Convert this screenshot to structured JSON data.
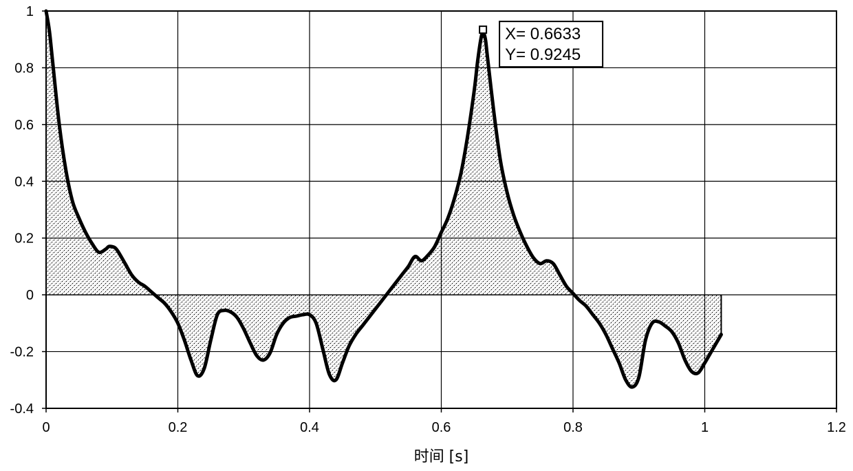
{
  "chart_data": {
    "type": "area",
    "xlabel": "时间 [s]",
    "ylabel": "",
    "xlim": [
      0,
      1.2
    ],
    "ylim": [
      -0.4,
      1.0
    ],
    "x_ticks": [
      "0",
      "0.2",
      "0.4",
      "0.6",
      "0.8",
      "1",
      "1.2"
    ],
    "y_ticks": [
      "1",
      "0.8",
      "0.6",
      "0.4",
      "0.2",
      "0",
      "-0.2",
      "-0.4"
    ],
    "grid": true,
    "fill_pattern": "stipple",
    "cursor": {
      "x": 0.6633,
      "y": 0.9245,
      "x_text": "X= 0.6633",
      "y_text": "Y= 0.9245"
    },
    "series": [
      {
        "x": [
          0,
          0.005,
          0.01,
          0.02,
          0.03,
          0.04,
          0.05,
          0.06,
          0.07,
          0.08,
          0.09,
          0.095,
          0.1,
          0.105,
          0.11,
          0.12,
          0.13,
          0.14,
          0.15,
          0.16,
          0.17,
          0.18,
          0.19,
          0.2,
          0.21,
          0.22,
          0.23,
          0.24,
          0.25,
          0.26,
          0.27,
          0.28,
          0.29,
          0.3,
          0.31,
          0.32,
          0.33,
          0.34,
          0.35,
          0.36,
          0.37,
          0.38,
          0.39,
          0.4,
          0.41,
          0.42,
          0.43,
          0.44,
          0.45,
          0.46,
          0.47,
          0.48,
          0.49,
          0.5,
          0.51,
          0.52,
          0.53,
          0.54,
          0.55,
          0.56,
          0.57,
          0.58,
          0.59,
          0.6,
          0.61,
          0.62,
          0.63,
          0.64,
          0.65,
          0.655,
          0.66,
          0.6633,
          0.667,
          0.67,
          0.68,
          0.69,
          0.7,
          0.71,
          0.72,
          0.73,
          0.74,
          0.75,
          0.76,
          0.77,
          0.78,
          0.79,
          0.8,
          0.81,
          0.82,
          0.83,
          0.84,
          0.85,
          0.86,
          0.87,
          0.88,
          0.89,
          0.9,
          0.91,
          0.92,
          0.93,
          0.94,
          0.95,
          0.96,
          0.97,
          0.98,
          0.99,
          1.0,
          1.01,
          1.02,
          1.025
        ],
        "values": [
          1.0,
          0.93,
          0.82,
          0.6,
          0.44,
          0.33,
          0.27,
          0.22,
          0.18,
          0.15,
          0.16,
          0.17,
          0.17,
          0.165,
          0.15,
          0.11,
          0.07,
          0.045,
          0.03,
          0.01,
          -0.01,
          -0.03,
          -0.06,
          -0.1,
          -0.16,
          -0.23,
          -0.285,
          -0.26,
          -0.16,
          -0.07,
          -0.055,
          -0.06,
          -0.08,
          -0.12,
          -0.17,
          -0.215,
          -0.23,
          -0.205,
          -0.14,
          -0.1,
          -0.08,
          -0.075,
          -0.07,
          -0.07,
          -0.1,
          -0.19,
          -0.28,
          -0.3,
          -0.24,
          -0.18,
          -0.14,
          -0.11,
          -0.08,
          -0.05,
          -0.02,
          0.01,
          0.04,
          0.07,
          0.1,
          0.135,
          0.12,
          0.14,
          0.17,
          0.22,
          0.27,
          0.34,
          0.43,
          0.56,
          0.72,
          0.82,
          0.9,
          0.9245,
          0.9,
          0.84,
          0.64,
          0.47,
          0.36,
          0.28,
          0.22,
          0.17,
          0.13,
          0.11,
          0.12,
          0.11,
          0.07,
          0.03,
          0.005,
          -0.02,
          -0.04,
          -0.07,
          -0.1,
          -0.14,
          -0.19,
          -0.24,
          -0.3,
          -0.325,
          -0.29,
          -0.16,
          -0.1,
          -0.095,
          -0.11,
          -0.13,
          -0.17,
          -0.23,
          -0.27,
          -0.275,
          -0.24,
          -0.2,
          -0.16,
          -0.14
        ]
      }
    ]
  }
}
